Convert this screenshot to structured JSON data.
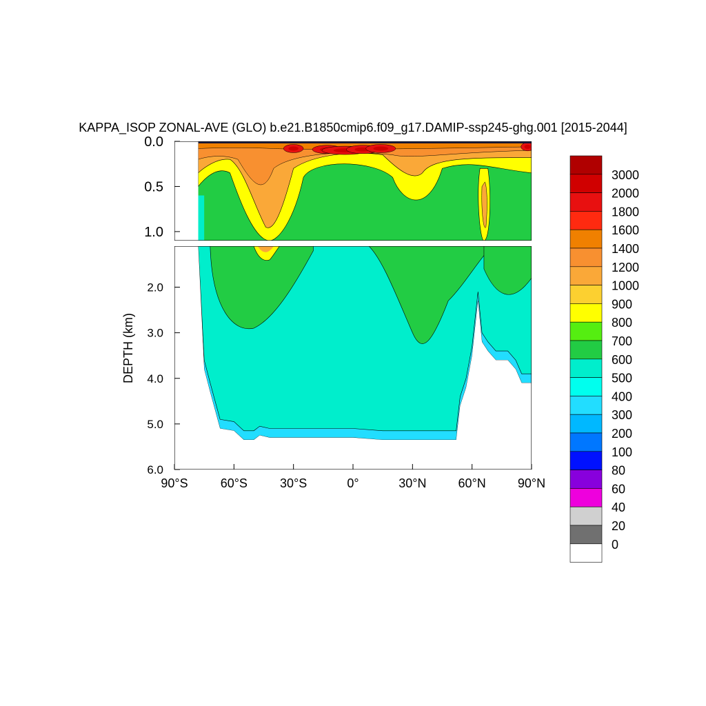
{
  "chart_data": {
    "type": "heatmap",
    "title": "KAPPA_ISOP ZONAL-AVE (GLO) b.e21.B1850cmip6.f09_g17.DAMIP-ssp245-ghg.001 [2015-2044]",
    "ylabel": "DEPTH (km)",
    "xlabel": "",
    "x_ticks": [
      "90°S",
      "60°S",
      "30°S",
      "0°",
      "30°N",
      "60°N",
      "90°N"
    ],
    "x_tick_values": [
      -90,
      -60,
      -30,
      0,
      30,
      60,
      90
    ],
    "xlim": [
      -90,
      90
    ],
    "upper_panel": {
      "ylim": [
        0.0,
        1.1
      ],
      "y_ticks": [
        "0.0",
        "0.5",
        "1.0"
      ],
      "y_tick_values": [
        0.0,
        0.5,
        1.0
      ]
    },
    "lower_panel": {
      "ylim": [
        1.1,
        6.0
      ],
      "y_ticks": [
        "2.0",
        "3.0",
        "4.0",
        "5.0",
        "6.0"
      ],
      "y_tick_values": [
        2.0,
        3.0,
        4.0,
        5.0,
        6.0
      ]
    },
    "colorbar": {
      "labels": [
        "3000",
        "2000",
        "1800",
        "1600",
        "1400",
        "1200",
        "1000",
        "900",
        "800",
        "700",
        "600",
        "500",
        "400",
        "300",
        "200",
        "100",
        "80",
        "60",
        "40",
        "20",
        "0"
      ],
      "colors": [
        "#b00000",
        "#d00000",
        "#e81010",
        "#ff2a10",
        "#f08000",
        "#f89030",
        "#faa838",
        "#fcd030",
        "#ffff00",
        "#55ee11",
        "#22cc44",
        "#00eecc",
        "#00ffee",
        "#22ddff",
        "#00b8ff",
        "#0077ff",
        "#0011ff",
        "#8800dd",
        "#ee00dd",
        "#d0d0d0",
        "#707070",
        "#ffffff"
      ]
    },
    "seafloor_depth_km": [
      [
        -78,
        0.9
      ],
      [
        -75,
        3.8
      ],
      [
        -72,
        4.3
      ],
      [
        -67,
        5.1
      ],
      [
        -60,
        5.15
      ],
      [
        -55,
        5.35
      ],
      [
        -50,
        5.35
      ],
      [
        -47,
        5.25
      ],
      [
        -42,
        5.3
      ],
      [
        -30,
        5.3
      ],
      [
        -15,
        5.3
      ],
      [
        0,
        5.3
      ],
      [
        15,
        5.35
      ],
      [
        30,
        5.35
      ],
      [
        45,
        5.35
      ],
      [
        52,
        5.35
      ],
      [
        54,
        4.6
      ],
      [
        57,
        4.2
      ],
      [
        60,
        3.5
      ],
      [
        63,
        2.3
      ],
      [
        65,
        3.2
      ],
      [
        68,
        3.4
      ],
      [
        72,
        3.6
      ],
      [
        78,
        3.6
      ],
      [
        82,
        3.8
      ],
      [
        85,
        4.1
      ],
      [
        90,
        4.1
      ]
    ],
    "field_regions": [
      {
        "value_class": "500-600",
        "description": "deep ocean"
      },
      {
        "value_class": "600-700",
        "polygons": "mid-depth lobes"
      },
      {
        "value_class": "700-800",
        "polygons": "upper ocean"
      },
      {
        "value_class": "900-1400",
        "polygons": "near surface maxima"
      },
      {
        "value_class": "1600-3000",
        "polygons": "equatorial surface maxima"
      }
    ]
  }
}
